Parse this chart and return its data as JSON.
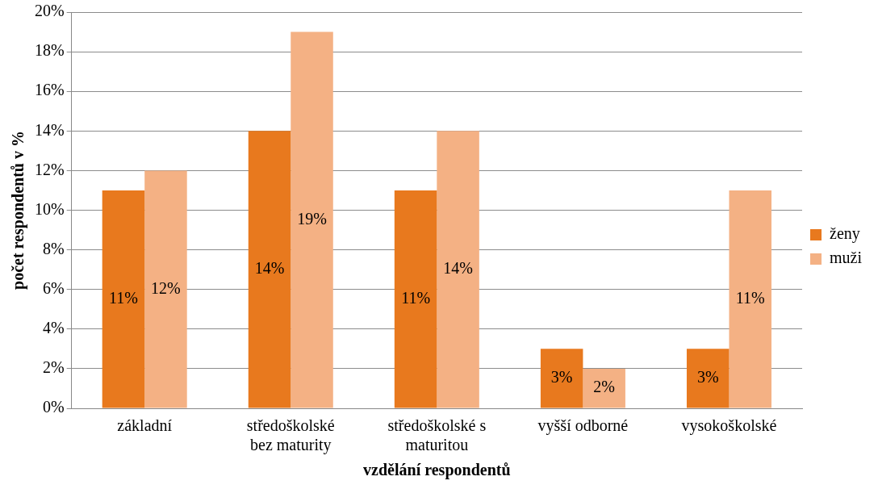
{
  "chart_data": {
    "type": "bar",
    "xlabel": "vzdělání respondentů",
    "ylabel": "počet respondentů v %",
    "categories": [
      "základní",
      "středoškolské bez maturity",
      "středoškolské s maturitou",
      "vyšší odborné",
      "vysokoškolské"
    ],
    "series": [
      {
        "name": "ženy",
        "color": "#e8791e",
        "values": [
          11,
          14,
          11,
          3,
          3
        ],
        "value_labels": [
          "11%",
          "14%",
          "11%",
          "3%",
          "3%"
        ]
      },
      {
        "name": "muži",
        "color": "#f4b184",
        "values": [
          12,
          19,
          14,
          2,
          11
        ],
        "value_labels": [
          "12%",
          "19%",
          "14%",
          "2%",
          "11%"
        ]
      }
    ],
    "ylim": [
      0,
      20
    ],
    "yticks": [
      {
        "value": 0,
        "label": "0%"
      },
      {
        "value": 2,
        "label": "2%"
      },
      {
        "value": 4,
        "label": "4%"
      },
      {
        "value": 6,
        "label": "6%"
      },
      {
        "value": 8,
        "label": "8%"
      },
      {
        "value": 10,
        "label": "10%"
      },
      {
        "value": 12,
        "label": "12%"
      },
      {
        "value": 14,
        "label": "14%"
      },
      {
        "value": 16,
        "label": "16%"
      },
      {
        "value": 18,
        "label": "18%"
      },
      {
        "value": 20,
        "label": "20%"
      }
    ],
    "grid": "y",
    "legend": "right"
  }
}
